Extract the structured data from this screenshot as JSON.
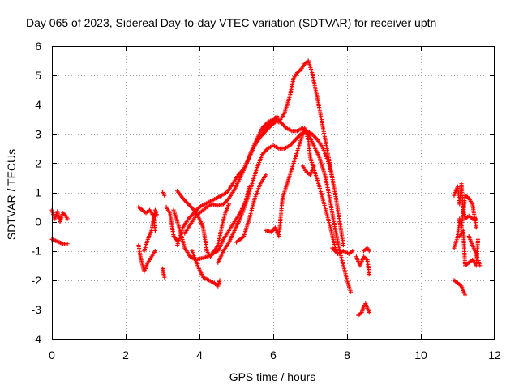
{
  "chart_data": {
    "type": "scatter",
    "title": "Day 065 of 2023, Sidereal Day-to-day VTEC variation (SDTVAR) for receiver uptn",
    "xlabel": "GPS time / hours",
    "ylabel": "SDTVAR / TECUs",
    "xlim": [
      0,
      12
    ],
    "ylim": [
      -4,
      6
    ],
    "xticks": [
      "0",
      "2",
      "4",
      "6",
      "8",
      "10",
      "12"
    ],
    "yticks": [
      "-4",
      "-3",
      "-2",
      "-1",
      "0",
      "1",
      "2",
      "3",
      "4",
      "5",
      "6"
    ],
    "grid": true,
    "marker": "+",
    "series": [
      {
        "name": "SDTVAR",
        "color": "#ff0000",
        "tracks": [
          [
            [
              0.0,
              0.4
            ],
            [
              0.08,
              0.1
            ],
            [
              0.15,
              0.35
            ],
            [
              0.22,
              0.0
            ],
            [
              0.3,
              0.3
            ],
            [
              0.38,
              0.2
            ],
            [
              0.42,
              0.1
            ]
          ],
          [
            [
              0.0,
              -0.6
            ],
            [
              0.1,
              -0.65
            ],
            [
              0.2,
              -0.7
            ],
            [
              0.3,
              -0.75
            ],
            [
              0.42,
              -0.75
            ]
          ],
          [
            [
              2.35,
              0.5
            ],
            [
              2.45,
              0.4
            ],
            [
              2.55,
              0.3
            ],
            [
              2.65,
              0.4
            ],
            [
              2.75,
              0.2
            ],
            [
              2.8,
              -0.3
            ]
          ],
          [
            [
              2.35,
              -0.8
            ],
            [
              2.4,
              -1.2
            ],
            [
              2.5,
              -1.7
            ],
            [
              2.6,
              -1.4
            ],
            [
              2.7,
              -1.2
            ],
            [
              2.8,
              -1.0
            ]
          ],
          [
            [
              2.5,
              -1.0
            ],
            [
              2.6,
              -0.6
            ],
            [
              2.7,
              -0.3
            ],
            [
              2.8,
              0.4
            ],
            [
              2.85,
              0.2
            ]
          ],
          [
            [
              3.0,
              1.0
            ],
            [
              3.05,
              0.9
            ]
          ],
          [
            [
              3.0,
              -1.6
            ],
            [
              3.05,
              -1.9
            ]
          ],
          [
            [
              3.1,
              0.5
            ],
            [
              3.2,
              0.3
            ],
            [
              3.3,
              -0.5
            ],
            [
              3.4,
              -0.65
            ]
          ],
          [
            [
              3.4,
              1.05
            ],
            [
              3.55,
              0.8
            ],
            [
              3.7,
              0.6
            ],
            [
              3.85,
              0.4
            ],
            [
              4.0,
              0.1
            ],
            [
              4.1,
              -0.2
            ],
            [
              4.2,
              -1.0
            ],
            [
              4.3,
              -1.2
            ],
            [
              4.4,
              -1.0
            ],
            [
              4.5,
              -0.8
            ],
            [
              4.6,
              -0.2
            ],
            [
              4.7,
              0.3
            ],
            [
              4.8,
              0.6
            ]
          ],
          [
            [
              3.3,
              0.4
            ],
            [
              3.45,
              -0.2
            ],
            [
              3.6,
              -0.9
            ],
            [
              3.75,
              -1.2
            ],
            [
              3.9,
              -1.3
            ],
            [
              4.05,
              -1.25
            ],
            [
              4.2,
              -1.2
            ],
            [
              4.35,
              -1.1
            ],
            [
              4.5,
              -1.0
            ],
            [
              4.65,
              -0.6
            ],
            [
              4.8,
              -0.3
            ],
            [
              4.95,
              0.0
            ],
            [
              5.1,
              0.3
            ],
            [
              5.25,
              0.7
            ],
            [
              5.35,
              1.2
            ]
          ],
          [
            [
              3.4,
              -0.8
            ],
            [
              3.55,
              -0.2
            ],
            [
              3.7,
              0.1
            ],
            [
              3.85,
              0.3
            ],
            [
              4.0,
              0.5
            ],
            [
              4.15,
              0.6
            ],
            [
              4.3,
              0.7
            ],
            [
              4.45,
              0.8
            ],
            [
              4.6,
              0.9
            ],
            [
              4.75,
              1.0
            ],
            [
              4.9,
              1.3
            ],
            [
              5.05,
              1.6
            ],
            [
              5.2,
              1.8
            ],
            [
              5.35,
              2.2
            ],
            [
              5.5,
              2.6
            ],
            [
              5.65,
              2.9
            ],
            [
              5.8,
              3.1
            ],
            [
              5.95,
              3.3
            ],
            [
              6.05,
              3.4
            ]
          ],
          [
            [
              3.6,
              -0.4
            ],
            [
              3.75,
              -0.1
            ],
            [
              3.9,
              0.2
            ],
            [
              4.05,
              0.35
            ],
            [
              4.2,
              0.5
            ],
            [
              4.35,
              0.6
            ],
            [
              4.5,
              0.55
            ],
            [
              4.65,
              0.6
            ],
            [
              4.8,
              0.8
            ],
            [
              4.95,
              1.1
            ],
            [
              5.1,
              1.5
            ],
            [
              5.25,
              1.9
            ],
            [
              5.4,
              2.4
            ],
            [
              5.55,
              2.8
            ],
            [
              5.7,
              3.2
            ],
            [
              5.85,
              3.4
            ],
            [
              6.0,
              3.5
            ],
            [
              6.1,
              3.6
            ],
            [
              6.2,
              3.4
            ],
            [
              6.35,
              3.2
            ],
            [
              6.5,
              3.1
            ],
            [
              6.65,
              3.1
            ],
            [
              6.8,
              3.2
            ],
            [
              6.95,
              3.0
            ],
            [
              7.1,
              2.6
            ],
            [
              7.25,
              2.2
            ],
            [
              7.4,
              1.6
            ],
            [
              7.5,
              1.0
            ],
            [
              7.6,
              0.3
            ],
            [
              7.7,
              -0.4
            ],
            [
              7.8,
              -1.0
            ],
            [
              7.9,
              -1.5
            ],
            [
              8.0,
              -2.0
            ],
            [
              8.1,
              -2.4
            ]
          ],
          [
            [
              3.8,
              -1.0
            ],
            [
              3.95,
              -1.5
            ],
            [
              4.1,
              -1.9
            ],
            [
              4.25,
              -2.0
            ],
            [
              4.4,
              -2.1
            ],
            [
              4.5,
              -2.2
            ],
            [
              4.55,
              -2.0
            ]
          ],
          [
            [
              4.5,
              -1.4
            ],
            [
              4.65,
              -1.0
            ],
            [
              4.8,
              -0.7
            ],
            [
              4.95,
              -0.3
            ],
            [
              5.1,
              0.1
            ],
            [
              5.25,
              0.6
            ],
            [
              5.4,
              1.2
            ],
            [
              5.55,
              1.8
            ],
            [
              5.7,
              2.3
            ],
            [
              5.85,
              2.5
            ],
            [
              6.0,
              2.6
            ],
            [
              6.15,
              2.5
            ],
            [
              6.3,
              2.5
            ],
            [
              6.45,
              2.6
            ],
            [
              6.6,
              2.8
            ],
            [
              6.75,
              3.0
            ],
            [
              6.9,
              3.1
            ],
            [
              7.05,
              3.0
            ],
            [
              7.2,
              2.8
            ],
            [
              7.35,
              2.5
            ],
            [
              7.5,
              2.0
            ],
            [
              7.6,
              1.5
            ]
          ],
          [
            [
              5.7,
              3.0
            ],
            [
              5.85,
              3.3
            ],
            [
              6.0,
              3.5
            ],
            [
              6.15,
              3.4
            ],
            [
              6.3,
              3.7
            ],
            [
              6.45,
              4.3
            ],
            [
              6.55,
              4.9
            ],
            [
              6.65,
              5.1
            ],
            [
              6.75,
              5.2
            ],
            [
              6.85,
              5.4
            ],
            [
              6.95,
              5.5
            ],
            [
              7.05,
              5.1
            ],
            [
              7.2,
              4.2
            ],
            [
              7.35,
              3.2
            ],
            [
              7.5,
              2.2
            ],
            [
              7.6,
              1.5
            ],
            [
              7.7,
              0.8
            ],
            [
              7.8,
              0.0
            ],
            [
              7.9,
              -0.8
            ]
          ],
          [
            [
              5.8,
              -0.3
            ],
            [
              5.95,
              -0.35
            ],
            [
              6.05,
              -0.2
            ],
            [
              6.15,
              -0.5
            ],
            [
              6.25,
              0.8
            ],
            [
              6.4,
              1.4
            ],
            [
              6.55,
              2.0
            ],
            [
              6.7,
              2.6
            ],
            [
              6.85,
              3.2
            ],
            [
              6.95,
              2.8
            ],
            [
              7.0,
              2.2
            ],
            [
              7.1,
              1.8
            ],
            [
              7.25,
              1.2
            ],
            [
              7.4,
              0.5
            ],
            [
              7.55,
              -0.2
            ],
            [
              7.7,
              -1.0
            ]
          ],
          [
            [
              5.0,
              -0.7
            ],
            [
              5.2,
              -0.5
            ],
            [
              5.35,
              0.1
            ],
            [
              5.5,
              0.8
            ],
            [
              5.65,
              1.3
            ],
            [
              5.8,
              1.6
            ]
          ],
          [
            [
              6.8,
              1.9
            ],
            [
              6.9,
              1.7
            ],
            [
              7.0,
              1.6
            ],
            [
              7.1,
              1.9
            ]
          ],
          [
            [
              7.6,
              -0.9
            ],
            [
              7.75,
              -1.1
            ],
            [
              7.9,
              -1.0
            ],
            [
              8.05,
              -1.1
            ],
            [
              8.15,
              -1.0
            ]
          ],
          [
            [
              8.25,
              -1.2
            ],
            [
              8.35,
              -1.5
            ],
            [
              8.45,
              -1.2
            ],
            [
              8.55,
              -1.3
            ],
            [
              8.6,
              -1.8
            ]
          ],
          [
            [
              8.45,
              -1.0
            ],
            [
              8.55,
              -0.9
            ],
            [
              8.6,
              -1.0
            ]
          ],
          [
            [
              8.3,
              -3.2
            ],
            [
              8.4,
              -3.1
            ],
            [
              8.45,
              -2.9
            ],
            [
              8.5,
              -2.8
            ],
            [
              8.55,
              -2.95
            ],
            [
              8.6,
              -3.1
            ]
          ],
          [
            [
              10.9,
              0.9
            ],
            [
              11.0,
              1.2
            ],
            [
              11.05,
              0.6
            ],
            [
              11.1,
              1.3
            ],
            [
              11.15,
              0.3
            ],
            [
              11.2,
              0.9
            ],
            [
              11.3,
              0.8
            ],
            [
              11.4,
              0.6
            ],
            [
              11.5,
              -0.2
            ]
          ],
          [
            [
              10.9,
              -0.9
            ],
            [
              11.0,
              -0.5
            ],
            [
              11.05,
              0.1
            ],
            [
              11.1,
              -0.2
            ],
            [
              11.15,
              0.4
            ],
            [
              11.2,
              0.1
            ],
            [
              11.3,
              0.2
            ],
            [
              11.4,
              0.1
            ],
            [
              11.5,
              0.1
            ]
          ],
          [
            [
              11.05,
              -0.5
            ],
            [
              11.15,
              -0.3
            ],
            [
              11.2,
              -1.5
            ],
            [
              11.3,
              -1.4
            ],
            [
              11.4,
              -1.3
            ],
            [
              11.5,
              -1.5
            ],
            [
              11.55,
              -0.6
            ]
          ],
          [
            [
              10.9,
              -2.0
            ],
            [
              11.0,
              -2.1
            ],
            [
              11.1,
              -2.2
            ],
            [
              11.2,
              -2.5
            ]
          ],
          [
            [
              11.3,
              -0.5
            ],
            [
              11.4,
              -0.8
            ],
            [
              11.5,
              -1.1
            ],
            [
              11.6,
              -1.5
            ]
          ]
        ]
      }
    ]
  }
}
